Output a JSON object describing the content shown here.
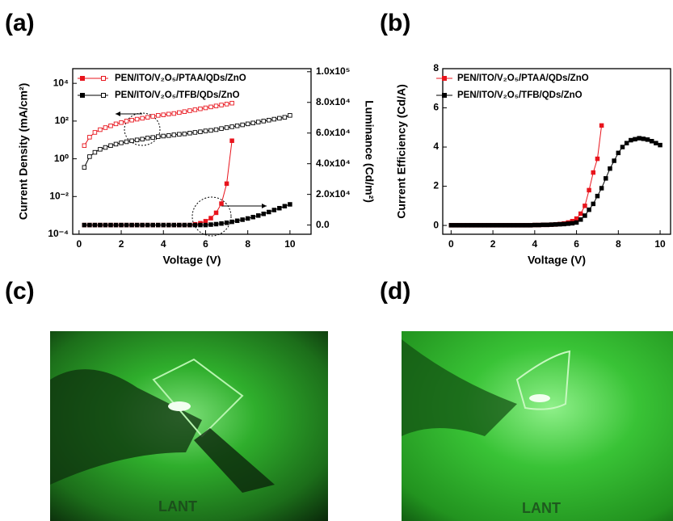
{
  "panel_labels": [
    "(a)",
    "(b)",
    "(c)",
    "(d)"
  ],
  "photos": [
    {
      "logo_text": "LANT"
    },
    {
      "logo_text": "LANT"
    }
  ],
  "chart_data": [
    {
      "type": "line",
      "xlabel": "Voltage (V)",
      "ylabel": "Current Density (mA/cm²)",
      "y2label": "Luminance (Cd/m²)",
      "xlim": [
        -0.3,
        11
      ],
      "xticks": [
        0,
        2,
        4,
        6,
        8,
        10
      ],
      "ylog": true,
      "ylim": [
        0.0001,
        60000
      ],
      "yticks": [
        {
          "value": 0.0001,
          "label": "10⁻⁴"
        },
        {
          "value": 0.01,
          "label": "10⁻²"
        },
        {
          "value": 1,
          "label": "10⁰"
        },
        {
          "value": 100,
          "label": "10²"
        },
        {
          "value": 10000,
          "label": "10⁴"
        }
      ],
      "y2lim": [
        -6000,
        102000
      ],
      "y2ticks": [
        {
          "value": 0,
          "label": "0.0"
        },
        {
          "value": 20000,
          "label": "2.0x10⁴"
        },
        {
          "value": 40000,
          "label": "4.0x10⁴"
        },
        {
          "value": 60000,
          "label": "6.0x10⁴"
        },
        {
          "value": 80000,
          "label": "8.0x10⁴"
        },
        {
          "value": 100000,
          "label": "1.0x10⁵"
        }
      ],
      "legend": "upper left",
      "series": [
        {
          "name": "PEN/ITO/V₂O₅/PTAA/QDs/ZnO",
          "color": "#e8141c",
          "marker": "filled",
          "axis": "y2",
          "x": [
            0.25,
            0.5,
            0.75,
            1,
            1.25,
            1.5,
            1.75,
            2,
            2.25,
            2.5,
            2.75,
            3,
            3.25,
            3.5,
            3.75,
            4,
            4.25,
            4.5,
            4.75,
            5,
            5.25,
            5.5,
            5.75,
            6,
            6.25,
            6.5,
            6.75,
            7,
            7.25
          ],
          "values": [
            0,
            0,
            0,
            0,
            0,
            0,
            0,
            0,
            0,
            0,
            0,
            0,
            0,
            0,
            0,
            0,
            0,
            0,
            0,
            0,
            0,
            500,
            1200,
            2500,
            4500,
            8000,
            14000,
            27000,
            55000
          ]
        },
        {
          "name": "PEN/ITO/V₂O₅/PTAA/QDs/ZnO",
          "color": "#e8141c",
          "marker": "open",
          "axis": "y",
          "x": [
            0.25,
            0.5,
            0.75,
            1,
            1.25,
            1.5,
            1.75,
            2,
            2.25,
            2.5,
            2.75,
            3,
            3.25,
            3.5,
            3.75,
            4,
            4.25,
            4.5,
            4.75,
            5,
            5.25,
            5.5,
            5.75,
            6,
            6.25,
            6.5,
            6.75,
            7,
            7.25
          ],
          "values": [
            5,
            14,
            25,
            35,
            45,
            56,
            71,
            83,
            100,
            112,
            126,
            141,
            158,
            178,
            200,
            214,
            234,
            251,
            282,
            316,
            355,
            398,
            447,
            501,
            562,
            631,
            708,
            794,
            891
          ]
        },
        {
          "name": "PEN/ITO/V₂O₅/TFB/QDs/ZnO",
          "color": "#000000",
          "marker": "filled",
          "axis": "y2",
          "x": [
            0.25,
            0.5,
            0.75,
            1,
            1.25,
            1.5,
            1.75,
            2,
            2.25,
            2.5,
            2.75,
            3,
            3.25,
            3.5,
            3.75,
            4,
            4.25,
            4.5,
            4.75,
            5,
            5.25,
            5.5,
            5.75,
            6,
            6.25,
            6.5,
            6.75,
            7,
            7.25,
            7.5,
            7.75,
            8,
            8.25,
            8.5,
            8.75,
            9,
            9.25,
            9.5,
            9.75,
            10
          ],
          "values": [
            0,
            0,
            0,
            0,
            0,
            0,
            0,
            0,
            0,
            0,
            0,
            0,
            0,
            0,
            0,
            0,
            0,
            0,
            0,
            0,
            0,
            0,
            0,
            0,
            300,
            600,
            1000,
            1500,
            2100,
            2800,
            3500,
            4300,
            5200,
            6200,
            7300,
            8500,
            9800,
            11000,
            12300,
            13500
          ]
        },
        {
          "name": "PEN/ITO/V₂O₅/TFB/QDs/ZnO",
          "color": "#000000",
          "marker": "open",
          "axis": "y",
          "x": [
            0.25,
            0.5,
            0.75,
            1,
            1.25,
            1.5,
            1.75,
            2,
            2.25,
            2.5,
            2.75,
            3,
            3.25,
            3.5,
            3.75,
            4,
            4.25,
            4.5,
            4.75,
            5,
            5.25,
            5.5,
            5.75,
            6,
            6.25,
            6.5,
            6.75,
            7,
            7.25,
            7.5,
            7.75,
            8,
            8.25,
            8.5,
            8.75,
            9,
            9.25,
            9.5,
            9.75,
            10
          ],
          "values": [
            0.35,
            1.3,
            2.2,
            3.2,
            4,
            5,
            6,
            7,
            8,
            9,
            10,
            11,
            12.6,
            13.5,
            15,
            16,
            17,
            18.6,
            20,
            21,
            23,
            25,
            27,
            30,
            32,
            35,
            40,
            45,
            50,
            56,
            63,
            71,
            79,
            89,
            100,
            112,
            126,
            141,
            158,
            200
          ]
        }
      ]
    },
    {
      "type": "line",
      "xlabel": "Voltage (V)",
      "ylabel": "Current Efficiency (Cd/A)",
      "xlim": [
        -0.4,
        10.5
      ],
      "xticks": [
        0,
        2,
        4,
        6,
        8,
        10
      ],
      "ylim": [
        -0.45,
        8
      ],
      "yticks": [
        0,
        2,
        4,
        6,
        8
      ],
      "legend": "upper left",
      "series": [
        {
          "name": "PEN/ITO/V₂O₅/PTAA/QDs/ZnO",
          "color": "#e8141c",
          "marker": "filled",
          "axis": "y",
          "x": [
            0,
            0.2,
            0.4,
            0.6,
            0.8,
            1,
            1.2,
            1.4,
            1.6,
            1.8,
            2,
            2.2,
            2.4,
            2.6,
            2.8,
            3,
            3.2,
            3.4,
            3.6,
            3.8,
            4,
            4.2,
            4.4,
            4.6,
            4.8,
            5,
            5.2,
            5.4,
            5.6,
            5.8,
            6,
            6.2,
            6.4,
            6.6,
            6.8,
            7,
            7.2
          ],
          "values": [
            0.01,
            0.01,
            0.01,
            0.01,
            0.01,
            0.01,
            0.01,
            0.01,
            0.01,
            0.01,
            0.01,
            0.01,
            0.01,
            0.01,
            0.01,
            0.01,
            0.01,
            0.01,
            0.01,
            0.01,
            0.02,
            0.02,
            0.03,
            0.03,
            0.04,
            0.05,
            0.07,
            0.1,
            0.15,
            0.22,
            0.35,
            0.6,
            1.0,
            1.8,
            2.7,
            3.4,
            5.1
          ]
        },
        {
          "name": "PEN/ITO/V₂O₅/TFB/QDs/ZnO",
          "color": "#000000",
          "marker": "filled",
          "axis": "y",
          "x": [
            0,
            0.2,
            0.4,
            0.6,
            0.8,
            1,
            1.2,
            1.4,
            1.6,
            1.8,
            2,
            2.2,
            2.4,
            2.6,
            2.8,
            3,
            3.2,
            3.4,
            3.6,
            3.8,
            4,
            4.2,
            4.4,
            4.6,
            4.8,
            5,
            5.2,
            5.4,
            5.6,
            5.8,
            6,
            6.2,
            6.4,
            6.6,
            6.8,
            7,
            7.2,
            7.4,
            7.6,
            7.8,
            8,
            8.2,
            8.4,
            8.6,
            8.8,
            9,
            9.2,
            9.4,
            9.6,
            9.8,
            10
          ],
          "values": [
            0.01,
            0.01,
            0.01,
            0.01,
            0.01,
            0.01,
            0.01,
            0.01,
            0.01,
            0.01,
            0.01,
            0.01,
            0.01,
            0.01,
            0.01,
            0.01,
            0.01,
            0.01,
            0.01,
            0.01,
            0.02,
            0.02,
            0.03,
            0.03,
            0.04,
            0.05,
            0.06,
            0.07,
            0.09,
            0.11,
            0.15,
            0.3,
            0.5,
            0.8,
            1.1,
            1.5,
            1.9,
            2.4,
            2.9,
            3.3,
            3.7,
            4.0,
            4.2,
            4.35,
            4.4,
            4.45,
            4.42,
            4.38,
            4.3,
            4.2,
            4.1
          ]
        }
      ]
    }
  ]
}
